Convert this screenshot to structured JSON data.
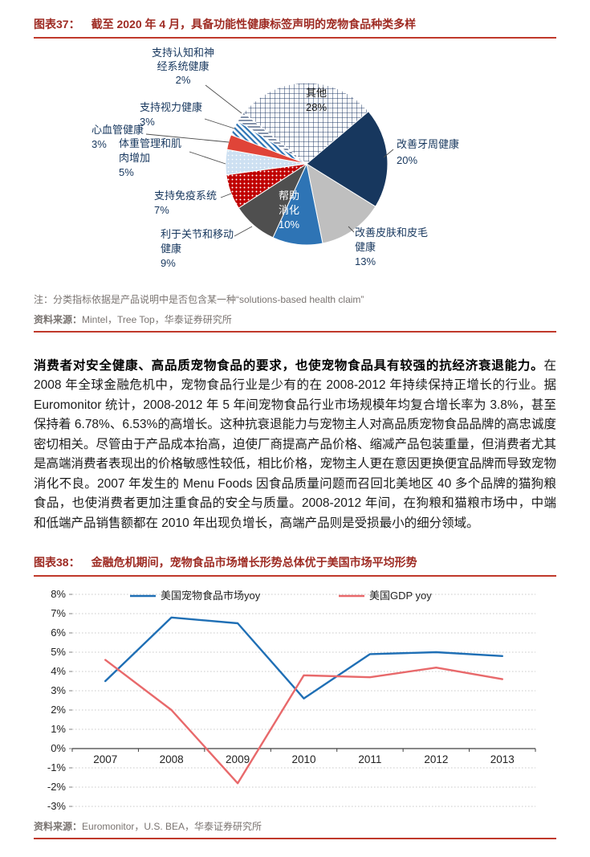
{
  "theme": {
    "rule_red": "#C0392B",
    "caption_red": "#9E2B23",
    "pie_navy": "#17375E",
    "pie_blue": "#2E74B5",
    "pie_gray": "#BFBFBF",
    "pie_dark_gray": "#4F4F4F",
    "pie_red": "#C00000",
    "line_blue": "#1F6FB5",
    "line_red": "#E8696B"
  },
  "figure37": {
    "label": "图表37：",
    "title": "截至 2020 年 4 月，具备功能性健康标签声明的宠物食品种类多样",
    "note": "注：分类指标依据是产品说明中是否包含某一种“solutions-based health claim”",
    "source_label": "资料来源：",
    "source": "Mintel，Tree Top，华泰证券研究所"
  },
  "body": {
    "lead": "消费者对安全健康、高品质宠物食品的要求，也使宠物食品具有较强的抗经济衰退能力。",
    "text": "在 2008 年全球金融危机中，宠物食品行业是少有的在 2008-2012 年持续保持正增长的行业。据 Euromonitor 统计，2008-2012 年 5 年间宠物食品行业市场规模年均复合增长率为 3.8%，甚至保持着 6.78%、6.53%的高增长。这种抗衰退能力与宠物主人对高品质宠物食品品牌的高忠诚度密切相关。尽管由于产品成本抬高，迫使厂商提高产品价格、缩减产品包装重量，但消费者尤其是高端消费者表现出的价格敏感性较低，相比价格，宠物主人更在意因更换便宜品牌而导致宠物消化不良。2007 年发生的 Menu Foods 因食品质量问题而召回北美地区 40 多个品牌的猫狗粮食品，也使消费者更加注重食品的安全与质量。2008-2012 年间，在狗粮和猫粮市场中，中端和低端产品销售额都在 2010 年出现负增长，高端产品则是受损最小的细分领域。"
  },
  "figure38": {
    "label": "图表38：",
    "title": "金融危机期间，宠物食品市场增长形势总体优于美国市场平均形势",
    "source_label": "资料来源：",
    "source": "Euromonitor，U.S. BEA，华泰证券研究所"
  },
  "chart_data": [
    {
      "figure": "图表37",
      "type": "pie",
      "start_angle_deg": -51,
      "slices": [
        {
          "label": "其他",
          "pct": 28,
          "fill": "crosshatch",
          "label_lines": [
            "其他",
            "28%"
          ],
          "inside": true,
          "label_color": "#1A1A1A"
        },
        {
          "label": "改善牙周健康",
          "pct": 20,
          "fill": "#17375E",
          "label_lines": [
            "改善牙周健康",
            "20%"
          ]
        },
        {
          "label": "改善皮肤和皮毛健康",
          "pct": 13,
          "fill": "#BFBFBF",
          "label_lines": [
            "改善皮肤和皮毛",
            "健康",
            "13%"
          ]
        },
        {
          "label": "帮助消化",
          "pct": 10,
          "fill": "#2E74B5",
          "label_lines": [
            "帮助",
            "消化",
            "10%"
          ],
          "inside": true,
          "label_color": "#FFFFFF"
        },
        {
          "label": "利于关节和移动健康",
          "pct": 9,
          "fill": "#4F4F4F",
          "label_lines": [
            "利于关节和移动",
            "健康",
            "9%"
          ]
        },
        {
          "label": "支持免疫系统",
          "pct": 7,
          "fill": "reddots",
          "label_lines": [
            "支持免疫系统",
            "7%"
          ]
        },
        {
          "label": "体重管理和肌肉增加",
          "pct": 5,
          "fill": "lightbluedots",
          "label_lines": [
            "体重管理和肌",
            "肉增加",
            "5%"
          ]
        },
        {
          "label": "心血管健康",
          "pct": 3,
          "fill": "#E04438",
          "label_lines": [
            "心血管健康",
            "3%"
          ]
        },
        {
          "label": "支持视力健康",
          "pct": 3,
          "fill": "bluediag",
          "label_lines": [
            "支持视力健康",
            "3%"
          ]
        },
        {
          "label": "支持认知和神经系统健康",
          "pct": 2,
          "fill": "navylines",
          "label_lines": [
            "支持认知和神",
            "经系统健康",
            "2%"
          ]
        }
      ]
    },
    {
      "figure": "图表38",
      "type": "line",
      "categories": [
        "2007",
        "2008",
        "2009",
        "2010",
        "2011",
        "2012",
        "2013"
      ],
      "series": [
        {
          "name": "美国宠物食品市场yoy",
          "color": "#1F6FB5",
          "values": [
            3.5,
            6.8,
            6.5,
            2.6,
            4.9,
            5.0,
            4.8
          ]
        },
        {
          "name": "美国GDP yoy",
          "color": "#E8696B",
          "values": [
            4.6,
            2.0,
            -1.8,
            3.8,
            3.7,
            4.2,
            3.6
          ]
        }
      ],
      "ylim": [
        -3,
        8
      ],
      "ytick_step": 1,
      "ytick_suffix": "%",
      "legend_position": "top",
      "grid": "horizontal-dotted"
    }
  ]
}
